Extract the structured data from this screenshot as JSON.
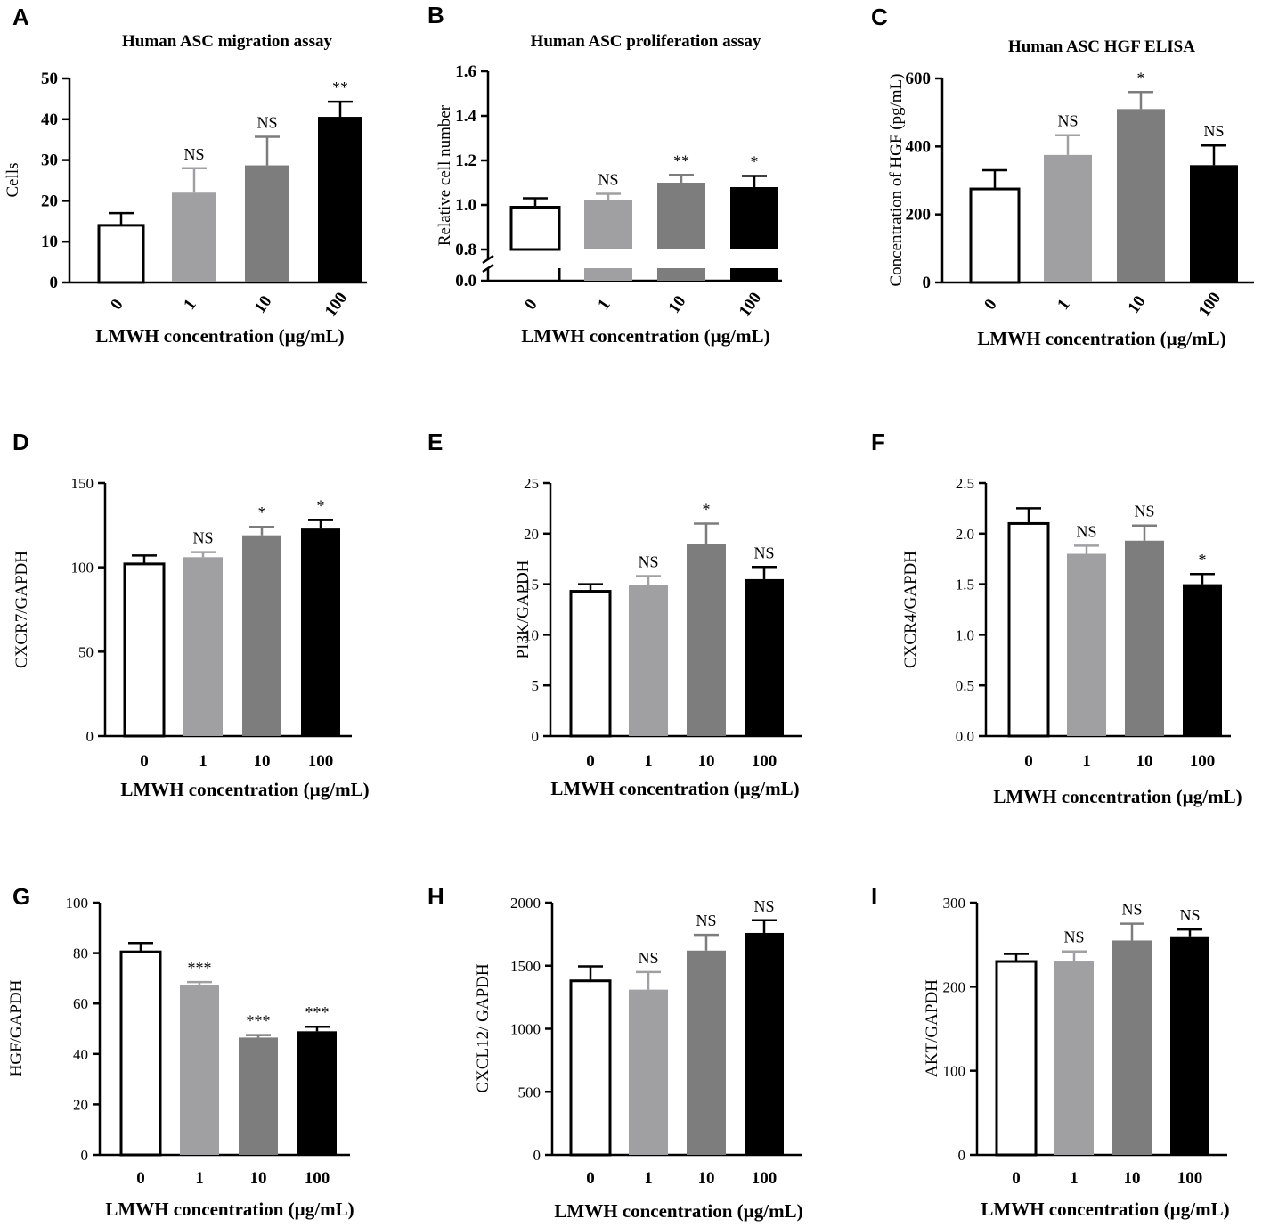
{
  "colors": {
    "c0": "#ffffff",
    "c1": "#a0a0a3",
    "c10": "#7d7d7d",
    "c100": "#000000"
  },
  "chart_data": [
    {
      "id": "A",
      "panel_label": "A",
      "type": "bar",
      "title": "Human ASC migration assay",
      "xlabel": "LMWH concentration (µg/mL)",
      "ylabel": "Cells",
      "categories": [
        "0",
        "1",
        "10",
        "100"
      ],
      "values": [
        14,
        22,
        28.7,
        40.6
      ],
      "errors": [
        3,
        6,
        7,
        3.7
      ],
      "annotations": [
        "",
        "NS",
        "NS",
        "**"
      ],
      "ylim": [
        0,
        50
      ],
      "yticks": [
        0,
        10,
        20,
        30,
        40,
        50
      ],
      "tick_format": "int",
      "rotated_xticks": true
    },
    {
      "id": "B",
      "panel_label": "B",
      "type": "bar",
      "title": "Human ASC proliferation assay",
      "xlabel": "LMWH concentration (µg/mL)",
      "ylabel": "Relative cell number",
      "categories": [
        "0",
        "1",
        "10",
        "100"
      ],
      "values": [
        0.99,
        1.02,
        1.1,
        1.08
      ],
      "errors": [
        0.04,
        0.03,
        0.035,
        0.05
      ],
      "annotations": [
        "",
        "NS",
        "**",
        "*"
      ],
      "ylim": [
        0.8,
        1.6
      ],
      "yticks": [
        0,
        0.8,
        1.0,
        1.2,
        1.4,
        1.6
      ],
      "tick_format": "1dp",
      "rotated_xticks": true,
      "axis_break": true
    },
    {
      "id": "C",
      "panel_label": "C",
      "type": "bar",
      "title": "Human ASC HGF ELISA",
      "xlabel": "LMWH concentration (µg/mL)",
      "ylabel": "Concentration of HGF (pg/mL)",
      "categories": [
        "0",
        "1",
        "10",
        "100"
      ],
      "values": [
        275,
        375,
        510,
        345
      ],
      "errors": [
        55,
        58,
        50,
        58
      ],
      "annotations": [
        "",
        "NS",
        "*",
        "NS"
      ],
      "ylim": [
        0,
        600
      ],
      "yticks": [
        0,
        200,
        400,
        600
      ],
      "tick_format": "int",
      "rotated_xticks": true
    },
    {
      "id": "D",
      "panel_label": "D",
      "type": "bar",
      "title": "",
      "xlabel": "LMWH concentration (µg/mL)",
      "ylabel": "CXCR7/GAPDH",
      "categories": [
        "0",
        "1",
        "10",
        "100"
      ],
      "values": [
        102,
        106,
        119,
        123
      ],
      "errors": [
        5,
        3,
        5,
        5
      ],
      "annotations": [
        "",
        "NS",
        "*",
        "*"
      ],
      "ylim": [
        0,
        150
      ],
      "yticks": [
        0,
        50,
        100,
        150
      ],
      "tick_format": "int",
      "rotated_xticks": false
    },
    {
      "id": "E",
      "panel_label": "E",
      "type": "bar",
      "title": "",
      "xlabel": "LMWH concentration (µg/mL)",
      "ylabel": "PI3K/GAPDH",
      "categories": [
        "0",
        "1",
        "10",
        "100"
      ],
      "values": [
        14.3,
        14.9,
        19,
        15.5
      ],
      "errors": [
        0.7,
        0.9,
        2,
        1.2
      ],
      "annotations": [
        "",
        "NS",
        "*",
        "NS"
      ],
      "ylim": [
        0,
        25
      ],
      "yticks": [
        0,
        5,
        10,
        15,
        20,
        25
      ],
      "tick_format": "int",
      "rotated_xticks": false
    },
    {
      "id": "F",
      "panel_label": "F",
      "type": "bar",
      "title": "",
      "xlabel": "LMWH concentration (µg/mL)",
      "ylabel": "CXCR4/GAPDH",
      "categories": [
        "0",
        "1",
        "10",
        "100"
      ],
      "values": [
        2.1,
        1.8,
        1.93,
        1.5
      ],
      "errors": [
        0.15,
        0.08,
        0.15,
        0.1
      ],
      "annotations": [
        "",
        "NS",
        "NS",
        "*"
      ],
      "ylim": [
        0,
        2.5
      ],
      "yticks": [
        0,
        0.5,
        1.0,
        1.5,
        2.0,
        2.5
      ],
      "tick_format": "1dp",
      "rotated_xticks": false
    },
    {
      "id": "G",
      "panel_label": "G",
      "type": "bar",
      "title": "",
      "xlabel": "LMWH concentration (µg/mL)",
      "ylabel": "HGF/GAPDH",
      "categories": [
        "0",
        "1",
        "10",
        "100"
      ],
      "values": [
        80.5,
        67.5,
        46.5,
        49
      ],
      "errors": [
        3.5,
        1,
        1,
        1.8
      ],
      "annotations": [
        "",
        "***",
        "***",
        "***"
      ],
      "ylim": [
        0,
        100
      ],
      "yticks": [
        0,
        20,
        40,
        60,
        80,
        100
      ],
      "tick_format": "int",
      "rotated_xticks": false
    },
    {
      "id": "H",
      "panel_label": "H",
      "type": "bar",
      "title": "",
      "xlabel": "LMWH concentration (µg/mL)",
      "ylabel": "CXCL12/ GAPDH",
      "categories": [
        "0",
        "1",
        "10",
        "100"
      ],
      "values": [
        1380,
        1310,
        1620,
        1760
      ],
      "errors": [
        115,
        140,
        125,
        100
      ],
      "annotations": [
        "",
        "NS",
        "NS",
        "NS"
      ],
      "ylim": [
        0,
        2000
      ],
      "yticks": [
        0,
        500,
        1000,
        1500,
        2000
      ],
      "tick_format": "int",
      "rotated_xticks": false
    },
    {
      "id": "I",
      "panel_label": "I",
      "type": "bar",
      "title": "",
      "xlabel": "LMWH concentration (µg/mL)",
      "ylabel": "AKT/GAPDH",
      "categories": [
        "0",
        "1",
        "10",
        "100"
      ],
      "values": [
        230,
        230,
        255,
        260
      ],
      "errors": [
        9,
        12,
        20,
        8
      ],
      "annotations": [
        "",
        "NS",
        "NS",
        "NS"
      ],
      "ylim": [
        0,
        300
      ],
      "yticks": [
        0,
        100,
        200,
        300
      ],
      "tick_format": "int",
      "rotated_xticks": false
    }
  ]
}
